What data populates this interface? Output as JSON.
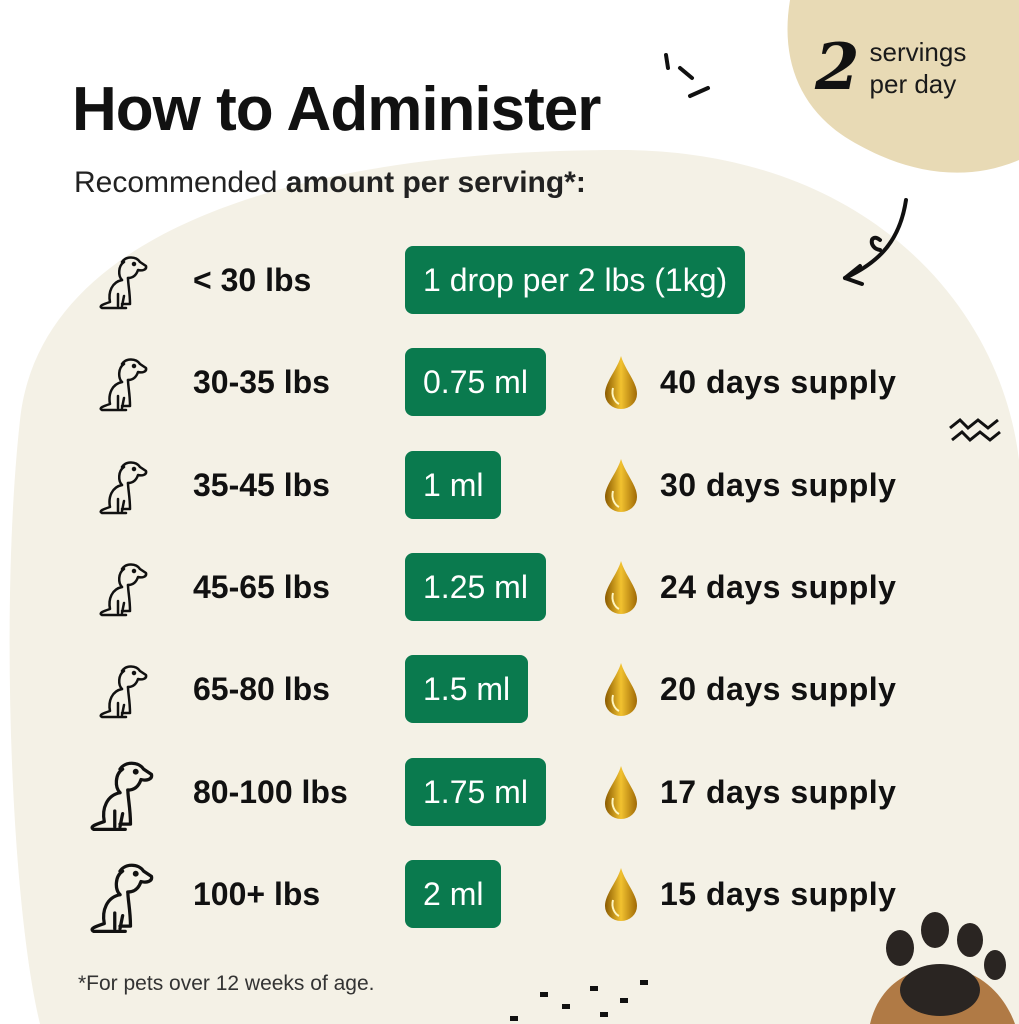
{
  "title": "How to Administer",
  "subtitle": {
    "prefix": "Recommended ",
    "bold": "amount per serving*:"
  },
  "badge": {
    "number": "2",
    "line1": "servings",
    "line2": "per day"
  },
  "rows": [
    {
      "weight": "< 30 lbs",
      "dose": "1 drop per 2 lbs (1kg)",
      "supply": ""
    },
    {
      "weight": "30-35 lbs",
      "dose": "0.75 ml",
      "supply": "40 days supply"
    },
    {
      "weight": "35-45 lbs",
      "dose": "1 ml",
      "supply": "30 days supply"
    },
    {
      "weight": "45-65 lbs",
      "dose": "1.25 ml",
      "supply": "24 days supply"
    },
    {
      "weight": "65-80 lbs",
      "dose": "1.5 ml",
      "supply": "20 days supply"
    },
    {
      "weight": "80-100 lbs",
      "dose": "1.75 ml",
      "supply": "17 days supply"
    },
    {
      "weight": "100+ lbs",
      "dose": "2 ml",
      "supply": "15 days supply"
    }
  ],
  "footnote": "*For pets over 12 weeks of age.",
  "colors": {
    "accent": "#0a7a4e",
    "cream": "#f4f1e6",
    "tan": "#e8dab5",
    "oil": "#e0a818"
  },
  "icons": [
    "dog-icon",
    "oil-drop-icon",
    "paw-icon",
    "arrow-icon"
  ]
}
